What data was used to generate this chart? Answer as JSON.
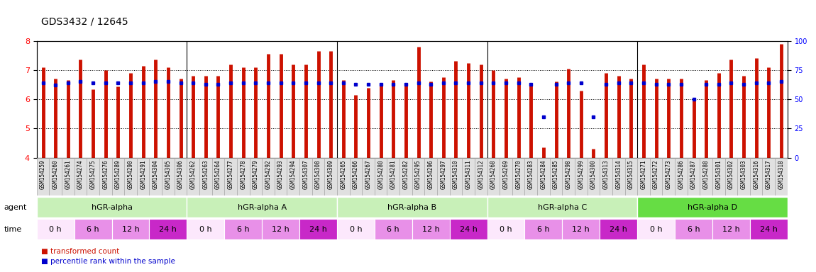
{
  "title": "GDS3432 / 12645",
  "samples": [
    "GSM154259",
    "GSM154260",
    "GSM154261",
    "GSM154274",
    "GSM154275",
    "GSM154276",
    "GSM154289",
    "GSM154290",
    "GSM154291",
    "GSM154304",
    "GSM154305",
    "GSM154306",
    "GSM154262",
    "GSM154263",
    "GSM154264",
    "GSM154277",
    "GSM154278",
    "GSM154279",
    "GSM154292",
    "GSM154293",
    "GSM154294",
    "GSM154307",
    "GSM154308",
    "GSM154309",
    "GSM154265",
    "GSM154266",
    "GSM154267",
    "GSM154280",
    "GSM154281",
    "GSM154282",
    "GSM154295",
    "GSM154296",
    "GSM154297",
    "GSM154310",
    "GSM154311",
    "GSM154312",
    "GSM154268",
    "GSM154269",
    "GSM154270",
    "GSM154283",
    "GSM154284",
    "GSM154285",
    "GSM154298",
    "GSM154299",
    "GSM154300",
    "GSM154313",
    "GSM154314",
    "GSM154315",
    "GSM154271",
    "GSM154272",
    "GSM154273",
    "GSM154286",
    "GSM154287",
    "GSM154288",
    "GSM154301",
    "GSM154302",
    "GSM154303",
    "GSM154316",
    "GSM154317",
    "GSM154318"
  ],
  "bar_values": [
    7.1,
    6.7,
    6.65,
    7.35,
    6.35,
    7.0,
    6.45,
    6.9,
    7.15,
    7.35,
    7.1,
    6.7,
    6.8,
    6.8,
    6.8,
    7.2,
    7.1,
    7.1,
    7.55,
    7.55,
    7.2,
    7.2,
    7.65,
    7.65,
    6.65,
    6.15,
    6.4,
    6.55,
    6.65,
    6.55,
    7.8,
    6.6,
    6.75,
    7.3,
    7.25,
    7.2,
    7.0,
    6.7,
    6.75,
    6.55,
    4.35,
    6.6,
    7.05,
    6.3,
    4.3,
    6.9,
    6.8,
    6.7,
    7.2,
    6.7,
    6.7,
    6.7,
    6.0,
    6.65,
    6.9,
    7.35,
    6.8,
    7.4,
    7.1,
    7.9
  ],
  "dot_values": [
    64,
    62,
    64,
    65,
    64,
    64,
    64,
    64,
    64,
    65,
    65,
    64,
    64,
    63,
    63,
    64,
    64,
    64,
    64,
    64,
    64,
    64,
    64,
    64,
    64,
    63,
    63,
    63,
    63,
    63,
    64,
    63,
    64,
    64,
    64,
    64,
    64,
    64,
    64,
    63,
    35,
    63,
    64,
    64,
    35,
    63,
    64,
    64,
    64,
    63,
    63,
    63,
    50,
    63,
    63,
    64,
    63,
    64,
    64,
    65
  ],
  "groups": [
    {
      "name": "hGR-alpha",
      "start": 0,
      "end": 11,
      "color": "#c8f0c8"
    },
    {
      "name": "hGR-alpha A",
      "start": 12,
      "end": 23,
      "color": "#c8f0c8"
    },
    {
      "name": "hGR-alpha B",
      "start": 24,
      "end": 35,
      "color": "#c8f0c8"
    },
    {
      "name": "hGR-alpha C",
      "start": 36,
      "end": 47,
      "color": "#c8f0c8"
    },
    {
      "name": "hGR-alpha D",
      "start": 48,
      "end": 59,
      "color": "#66cc44"
    }
  ],
  "time_labels": [
    "0 h",
    "6 h",
    "12 h",
    "24 h"
  ],
  "time_colors": [
    "#f8c8f8",
    "#e890e8",
    "#e890e8",
    "#d050d0"
  ],
  "ymin": 4.0,
  "ymax": 8.0,
  "yticks": [
    4,
    5,
    6,
    7,
    8
  ],
  "bar_color": "#cc1100",
  "dot_color": "#0000cc",
  "bar_bottom": 4.0
}
